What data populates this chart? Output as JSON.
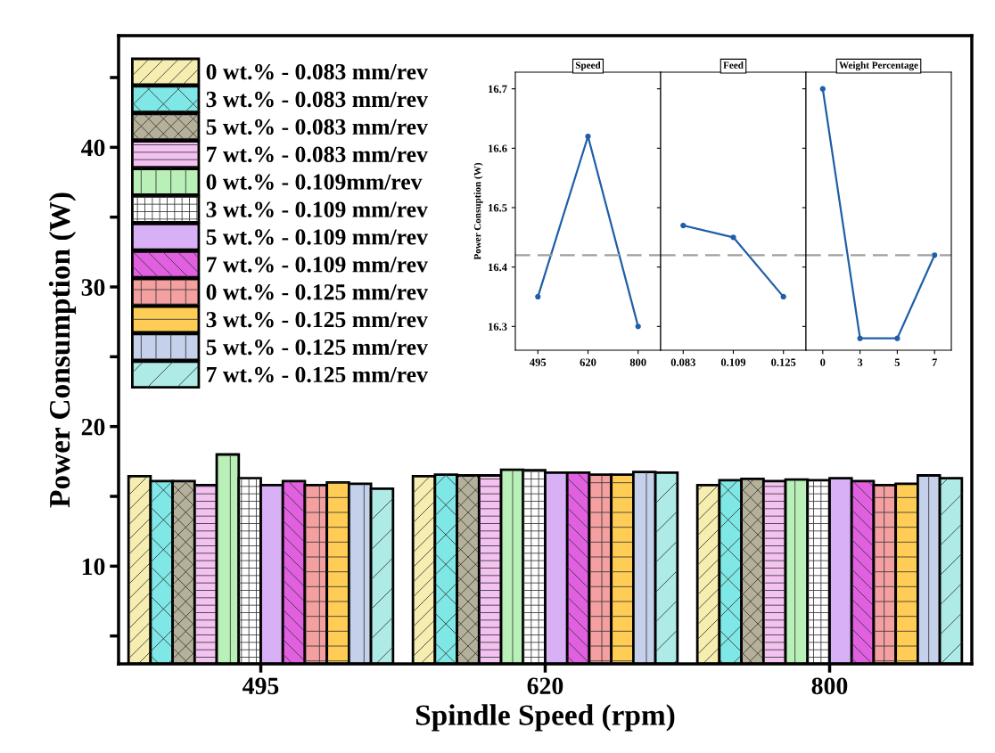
{
  "chart_data": [
    {
      "type": "bar",
      "xlabel": "Spindle Speed (rpm)",
      "ylabel": "Power Consumption (W)",
      "categories": [
        "495",
        "620",
        "800"
      ],
      "ylim": [
        3,
        48
      ],
      "yticks": [
        {
          "value": 5,
          "label": null
        },
        10,
        {
          "value": 15,
          "label": null
        },
        20,
        {
          "value": 25,
          "label": null
        },
        30,
        {
          "value": 35,
          "label": null
        },
        40,
        {
          "value": 45,
          "label": null
        }
      ],
      "legend": "top left",
      "grid": false,
      "series": [
        {
          "name": "0 wt.% - 0.083 mm/rev",
          "color": "#f5eeb0",
          "values": [
            16.45,
            16.45,
            15.8
          ]
        },
        {
          "name": "3 wt.% - 0.083 mm/rev",
          "color": "#7fe8e6",
          "values": [
            16.1,
            16.55,
            16.15
          ]
        },
        {
          "name": "5 wt.% - 0.083 mm/rev",
          "color": "#b5b09a",
          "values": [
            16.1,
            16.5,
            16.25
          ]
        },
        {
          "name": "7 wt.% - 0.083 mm/rev",
          "color": "#f4c2f0",
          "values": [
            15.8,
            16.5,
            16.1
          ]
        },
        {
          "name": "0 wt.% - 0.109mm/rev",
          "color": "#b8f0b8",
          "values": [
            18.0,
            16.9,
            16.2
          ]
        },
        {
          "name": "3 wt.% - 0.109 mm/rev",
          "color": "#ffffff",
          "values": [
            16.3,
            16.87,
            16.15
          ]
        },
        {
          "name": "5 wt.% - 0.109 mm/rev",
          "color": "#d8b0f5",
          "values": [
            15.8,
            16.7,
            16.3
          ]
        },
        {
          "name": "7 wt.% - 0.109 mm/rev",
          "color": "#e060e0",
          "values": [
            16.1,
            16.7,
            16.1
          ]
        },
        {
          "name": "0 wt.% - 0.125 mm/rev",
          "color": "#f4a0a0",
          "values": [
            15.8,
            16.55,
            15.8
          ]
        },
        {
          "name": "3 wt.% - 0.125 mm/rev",
          "color": "#ffcc55",
          "values": [
            16.0,
            16.55,
            15.9
          ]
        },
        {
          "name": "5 wt.% - 0.125 mm/rev",
          "color": "#c5d0ea",
          "values": [
            15.9,
            16.75,
            16.5
          ]
        },
        {
          "name": "7 wt.% - 0.125 mm/rev",
          "color": "#aeeae6",
          "values": [
            15.55,
            16.7,
            16.3
          ]
        }
      ]
    },
    {
      "type": "line",
      "title": "Speed",
      "ylabel": "Power Consuption (W)",
      "categories": [
        "495",
        "620",
        "800"
      ],
      "ylim": [
        16.26,
        16.728
      ],
      "yticks": [
        16.3,
        16.4,
        16.5,
        16.6,
        16.7
      ],
      "marker": "circle",
      "grid": false,
      "series": [
        {
          "color": "#1f5fa8",
          "values": [
            16.35,
            16.62,
            16.3
          ]
        }
      ],
      "ref_lines": [
        {
          "axis": "y",
          "value": 16.42,
          "color": "#a0a0a0",
          "line_style": "dashed"
        }
      ]
    },
    {
      "type": "line",
      "title": "Feed",
      "categories": [
        "0.083",
        "0.109",
        "0.125"
      ],
      "ylim": [
        16.26,
        16.728
      ],
      "tick_labels": "x",
      "marker": "circle",
      "grid": false,
      "series": [
        {
          "color": "#1f5fa8",
          "values": [
            16.47,
            16.45,
            16.35
          ]
        }
      ],
      "ref_lines": [
        {
          "axis": "y",
          "value": 16.42,
          "color": "#a0a0a0",
          "line_style": "dashed"
        }
      ]
    },
    {
      "type": "line",
      "title": "Weight Percentage",
      "categories": [
        "0",
        "3",
        "5",
        "7"
      ],
      "ylim": [
        16.26,
        16.728
      ],
      "tick_labels": "x",
      "marker": "circle",
      "grid": false,
      "series": [
        {
          "color": "#1f5fa8",
          "values": [
            16.7,
            16.28,
            16.28,
            16.42
          ]
        }
      ],
      "ref_lines": [
        {
          "axis": "y",
          "value": 16.42,
          "color": "#a0a0a0",
          "line_style": "dashed"
        }
      ]
    }
  ]
}
